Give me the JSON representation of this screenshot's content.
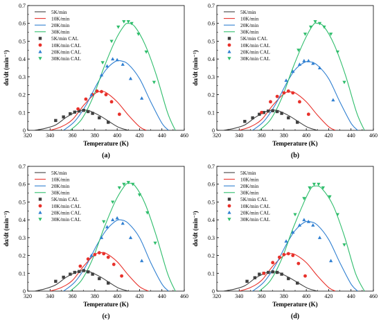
{
  "chart_data": [
    {
      "panel_label": "(a)",
      "type": "line",
      "xlabel": "Temperature (K)",
      "ylabel": "dα/dt (min⁻¹)",
      "xlim": [
        320,
        460
      ],
      "ylim": [
        0,
        0.7
      ],
      "x_ticks": [
        "320",
        "340",
        "360",
        "380",
        "400",
        "420",
        "440",
        "460"
      ],
      "y_ticks": [
        "0",
        "0.1",
        "0.2",
        "0.3",
        "0.4",
        "0.5",
        "0.6",
        "0.7"
      ],
      "legend_position": "top-left",
      "grid": false,
      "series": [
        {
          "name": "5K/min",
          "kind": "line",
          "color": "#404040",
          "x": [
            326,
            335,
            345,
            355,
            365,
            370,
            375,
            385,
            395,
            402,
            410
          ],
          "y": [
            0.0,
            0.01,
            0.03,
            0.075,
            0.108,
            0.112,
            0.11,
            0.08,
            0.04,
            0.015,
            0.0
          ]
        },
        {
          "name": "10K/min",
          "kind": "line",
          "color": "#e8312b",
          "x": [
            340,
            350,
            360,
            370,
            380,
            385,
            390,
            400,
            410,
            420,
            426
          ],
          "y": [
            0.0,
            0.02,
            0.06,
            0.14,
            0.205,
            0.218,
            0.212,
            0.16,
            0.085,
            0.02,
            0.0
          ]
        },
        {
          "name": "20K/min",
          "kind": "line",
          "color": "#2f7fd1",
          "x": [
            352,
            362,
            372,
            382,
            390,
            398,
            403,
            410,
            420,
            430,
            440,
            446
          ],
          "y": [
            0.0,
            0.05,
            0.14,
            0.26,
            0.34,
            0.385,
            0.39,
            0.37,
            0.29,
            0.16,
            0.04,
            0.0
          ]
        },
        {
          "name": "30K/min",
          "kind": "line",
          "color": "#2ebd6b",
          "x": [
            358,
            368,
            378,
            388,
            398,
            406,
            410,
            416,
            425,
            435,
            445,
            452
          ],
          "y": [
            0.0,
            0.06,
            0.18,
            0.35,
            0.5,
            0.585,
            0.6,
            0.58,
            0.48,
            0.31,
            0.1,
            0.0
          ]
        },
        {
          "name": "5K/min CAL",
          "kind": "scatter",
          "marker": "square",
          "color": "#404040",
          "x": [
            345,
            352,
            358,
            362,
            366,
            370,
            374,
            378,
            384,
            392
          ],
          "y": [
            0.055,
            0.075,
            0.093,
            0.102,
            0.108,
            0.112,
            0.105,
            0.095,
            0.07,
            0.045
          ]
        },
        {
          "name": "10K/min CAL",
          "kind": "scatter",
          "marker": "circle",
          "color": "#e8312b",
          "x": [
            365,
            372,
            378,
            382,
            386,
            390,
            395,
            402
          ],
          "y": [
            0.12,
            0.175,
            0.2,
            0.22,
            0.217,
            0.2,
            0.16,
            0.09
          ]
        },
        {
          "name": "20K/min CAL",
          "kind": "scatter",
          "marker": "triangle-up",
          "color": "#2f7fd1",
          "x": [
            377,
            386,
            391,
            396,
            400,
            405,
            412,
            422
          ],
          "y": [
            0.2,
            0.31,
            0.36,
            0.4,
            0.395,
            0.37,
            0.29,
            0.18
          ]
        },
        {
          "name": "30K/min CAL",
          "kind": "scatter",
          "marker": "triangle-down",
          "color": "#2ebd6b",
          "x": [
            387,
            395,
            401,
            406,
            410,
            413,
            419,
            426,
            433
          ],
          "y": [
            0.38,
            0.5,
            0.58,
            0.61,
            0.61,
            0.6,
            0.54,
            0.44,
            0.27
          ]
        }
      ]
    },
    {
      "panel_label": "(b)",
      "type": "line",
      "xlabel": "Temperature (K)",
      "ylabel": "dα/dt (min⁻¹)",
      "xlim": [
        320,
        460
      ],
      "ylim": [
        0,
        0.7
      ],
      "x_ticks": [
        "320",
        "340",
        "360",
        "380",
        "400",
        "420",
        "440",
        "460"
      ],
      "y_ticks": [
        "0",
        "0.1",
        "0.2",
        "0.3",
        "0.4",
        "0.5",
        "0.6",
        "0.7"
      ],
      "legend_position": "top-left",
      "grid": false,
      "series": [
        {
          "name": "5K/min",
          "kind": "line",
          "color": "#404040",
          "x": [
            326,
            335,
            345,
            355,
            365,
            370,
            375,
            385,
            395,
            402,
            410
          ],
          "y": [
            0.0,
            0.01,
            0.03,
            0.075,
            0.108,
            0.112,
            0.11,
            0.08,
            0.04,
            0.015,
            0.0
          ]
        },
        {
          "name": "10K/min",
          "kind": "line",
          "color": "#e8312b",
          "x": [
            340,
            350,
            360,
            370,
            380,
            385,
            390,
            400,
            410,
            420,
            426
          ],
          "y": [
            0.0,
            0.02,
            0.06,
            0.14,
            0.205,
            0.215,
            0.21,
            0.16,
            0.085,
            0.02,
            0.0
          ]
        },
        {
          "name": "20K/min",
          "kind": "line",
          "color": "#2f7fd1",
          "x": [
            352,
            362,
            372,
            382,
            390,
            398,
            403,
            410,
            420,
            430,
            440,
            446
          ],
          "y": [
            0.0,
            0.05,
            0.14,
            0.26,
            0.34,
            0.38,
            0.385,
            0.365,
            0.29,
            0.16,
            0.04,
            0.0
          ]
        },
        {
          "name": "30K/min",
          "kind": "line",
          "color": "#2ebd6b",
          "x": [
            358,
            368,
            378,
            388,
            398,
            406,
            410,
            416,
            425,
            435,
            445,
            452
          ],
          "y": [
            0.0,
            0.06,
            0.18,
            0.35,
            0.5,
            0.59,
            0.6,
            0.58,
            0.48,
            0.31,
            0.1,
            0.0
          ]
        },
        {
          "name": "5K/min CAL",
          "kind": "scatter",
          "marker": "square",
          "color": "#404040",
          "x": [
            345,
            352,
            358,
            362,
            366,
            370,
            374,
            378,
            384,
            392
          ],
          "y": [
            0.05,
            0.07,
            0.09,
            0.1,
            0.108,
            0.11,
            0.105,
            0.095,
            0.07,
            0.045
          ]
        },
        {
          "name": "10K/min CAL",
          "kind": "scatter",
          "marker": "circle",
          "color": "#e8312b",
          "x": [
            360,
            368,
            374,
            380,
            384,
            388,
            394,
            402
          ],
          "y": [
            0.1,
            0.16,
            0.19,
            0.21,
            0.22,
            0.21,
            0.16,
            0.09
          ]
        },
        {
          "name": "20K/min CAL",
          "kind": "scatter",
          "marker": "triangle-up",
          "color": "#2f7fd1",
          "x": [
            382,
            388,
            394,
            398,
            402,
            406,
            412,
            424
          ],
          "y": [
            0.28,
            0.33,
            0.37,
            0.39,
            0.39,
            0.375,
            0.35,
            0.17
          ]
        },
        {
          "name": "30K/min CAL",
          "kind": "scatter",
          "marker": "triangle-down",
          "color": "#2ebd6b",
          "x": [
            393,
            399,
            404,
            408,
            412,
            416,
            422,
            428,
            434
          ],
          "y": [
            0.45,
            0.54,
            0.58,
            0.61,
            0.6,
            0.58,
            0.54,
            0.44,
            0.27
          ]
        }
      ]
    },
    {
      "panel_label": "(c)",
      "type": "line",
      "xlabel": "Temperature (K)",
      "ylabel": "dα/dt (min⁻¹)",
      "xlim": [
        320,
        460
      ],
      "ylim": [
        0,
        0.7
      ],
      "x_ticks": [
        "320",
        "340",
        "360",
        "380",
        "400",
        "420",
        "440",
        "460"
      ],
      "y_ticks": [
        "0",
        "0.1",
        "0.2",
        "0.3",
        "0.4",
        "0.5",
        "0.6",
        "0.7"
      ],
      "legend_position": "top-left",
      "grid": false,
      "series": [
        {
          "name": "5K/min",
          "kind": "line",
          "color": "#404040",
          "x": [
            326,
            335,
            345,
            355,
            365,
            370,
            375,
            385,
            395,
            402,
            410
          ],
          "y": [
            0.0,
            0.012,
            0.035,
            0.08,
            0.11,
            0.114,
            0.11,
            0.08,
            0.04,
            0.015,
            0.0
          ]
        },
        {
          "name": "10K/min",
          "kind": "line",
          "color": "#e8312b",
          "x": [
            340,
            350,
            360,
            370,
            380,
            385,
            390,
            400,
            410,
            420,
            428
          ],
          "y": [
            0.0,
            0.02,
            0.06,
            0.14,
            0.205,
            0.215,
            0.212,
            0.165,
            0.09,
            0.025,
            0.0
          ]
        },
        {
          "name": "20K/min",
          "kind": "line",
          "color": "#2f7fd1",
          "x": [
            352,
            362,
            372,
            382,
            390,
            398,
            403,
            410,
            420,
            430,
            440,
            446
          ],
          "y": [
            0.0,
            0.05,
            0.14,
            0.26,
            0.34,
            0.39,
            0.4,
            0.38,
            0.3,
            0.16,
            0.04,
            0.0
          ]
        },
        {
          "name": "30K/min",
          "kind": "line",
          "color": "#2ebd6b",
          "x": [
            358,
            368,
            378,
            388,
            398,
            406,
            410,
            416,
            425,
            435,
            445,
            452
          ],
          "y": [
            0.0,
            0.06,
            0.18,
            0.35,
            0.5,
            0.585,
            0.605,
            0.59,
            0.49,
            0.31,
            0.1,
            0.0
          ]
        },
        {
          "name": "5K/min CAL",
          "kind": "scatter",
          "marker": "square",
          "color": "#404040",
          "x": [
            345,
            352,
            358,
            362,
            366,
            370,
            374,
            378,
            384,
            392
          ],
          "y": [
            0.055,
            0.078,
            0.095,
            0.105,
            0.11,
            0.115,
            0.108,
            0.095,
            0.07,
            0.045
          ]
        },
        {
          "name": "10K/min CAL",
          "kind": "scatter",
          "marker": "circle",
          "color": "#e8312b",
          "x": [
            367,
            374,
            380,
            384,
            388,
            392,
            397,
            404
          ],
          "y": [
            0.14,
            0.18,
            0.205,
            0.215,
            0.21,
            0.19,
            0.15,
            0.085
          ]
        },
        {
          "name": "20K/min CAL",
          "kind": "scatter",
          "marker": "triangle-up",
          "color": "#2f7fd1",
          "x": [
            377,
            386,
            391,
            396,
            400,
            405,
            412,
            422
          ],
          "y": [
            0.2,
            0.3,
            0.36,
            0.4,
            0.41,
            0.38,
            0.3,
            0.17
          ]
        },
        {
          "name": "30K/min CAL",
          "kind": "scatter",
          "marker": "triangle-down",
          "color": "#2ebd6b",
          "x": [
            388,
            396,
            402,
            406,
            410,
            414,
            420,
            427,
            434
          ],
          "y": [
            0.39,
            0.5,
            0.58,
            0.6,
            0.61,
            0.6,
            0.54,
            0.44,
            0.27
          ]
        }
      ]
    },
    {
      "panel_label": "(d)",
      "type": "line",
      "xlabel": "Temperature (K)",
      "ylabel": "dα/dt (min⁻¹)",
      "xlim": [
        320,
        460
      ],
      "ylim": [
        0,
        0.7
      ],
      "x_ticks": [
        "320",
        "340",
        "360",
        "380",
        "400",
        "420",
        "440",
        "460"
      ],
      "y_ticks": [
        "0",
        "0.1",
        "0.2",
        "0.3",
        "0.4",
        "0.5",
        "0.6",
        "0.7"
      ],
      "legend_position": "top-left",
      "grid": false,
      "series": [
        {
          "name": "5K/min",
          "kind": "line",
          "color": "#404040",
          "x": [
            326,
            335,
            345,
            355,
            365,
            370,
            375,
            385,
            395,
            402,
            410
          ],
          "y": [
            0.0,
            0.01,
            0.03,
            0.075,
            0.105,
            0.108,
            0.105,
            0.075,
            0.038,
            0.014,
            0.0
          ]
        },
        {
          "name": "10K/min",
          "kind": "line",
          "color": "#e8312b",
          "x": [
            340,
            350,
            360,
            370,
            380,
            385,
            390,
            400,
            410,
            420,
            426
          ],
          "y": [
            0.0,
            0.02,
            0.06,
            0.14,
            0.2,
            0.21,
            0.205,
            0.16,
            0.085,
            0.02,
            0.0
          ]
        },
        {
          "name": "20K/min",
          "kind": "line",
          "color": "#2f7fd1",
          "x": [
            352,
            362,
            372,
            382,
            390,
            398,
            403,
            410,
            420,
            430,
            440,
            446
          ],
          "y": [
            0.0,
            0.05,
            0.14,
            0.26,
            0.34,
            0.385,
            0.39,
            0.37,
            0.29,
            0.16,
            0.04,
            0.0
          ]
        },
        {
          "name": "30K/min",
          "kind": "line",
          "color": "#2ebd6b",
          "x": [
            358,
            368,
            378,
            388,
            398,
            404,
            408,
            414,
            424,
            434,
            444,
            452
          ],
          "y": [
            0.0,
            0.06,
            0.18,
            0.35,
            0.5,
            0.575,
            0.59,
            0.575,
            0.48,
            0.31,
            0.1,
            0.0
          ]
        },
        {
          "name": "5K/min CAL",
          "kind": "scatter",
          "marker": "square",
          "color": "#404040",
          "x": [
            347,
            354,
            358,
            362,
            366,
            370,
            374,
            378,
            384,
            392
          ],
          "y": [
            0.055,
            0.075,
            0.095,
            0.1,
            0.105,
            0.108,
            0.105,
            0.095,
            0.07,
            0.045
          ]
        },
        {
          "name": "10K/min CAL",
          "kind": "scatter",
          "marker": "circle",
          "color": "#e8312b",
          "x": [
            362,
            370,
            376,
            380,
            384,
            388,
            393,
            399
          ],
          "y": [
            0.1,
            0.16,
            0.19,
            0.205,
            0.21,
            0.2,
            0.155,
            0.085
          ]
        },
        {
          "name": "20K/min CAL",
          "kind": "scatter",
          "marker": "triangle-up",
          "color": "#2f7fd1",
          "x": [
            382,
            388,
            394,
            398,
            402,
            406,
            412,
            422
          ],
          "y": [
            0.28,
            0.33,
            0.37,
            0.4,
            0.39,
            0.37,
            0.3,
            0.17
          ]
        },
        {
          "name": "30K/min CAL",
          "kind": "scatter",
          "marker": "triangle-down",
          "color": "#2ebd6b",
          "x": [
            390,
            398,
            403,
            407,
            411,
            415,
            421,
            428,
            434
          ],
          "y": [
            0.43,
            0.52,
            0.58,
            0.6,
            0.6,
            0.58,
            0.53,
            0.43,
            0.26
          ]
        }
      ]
    }
  ]
}
